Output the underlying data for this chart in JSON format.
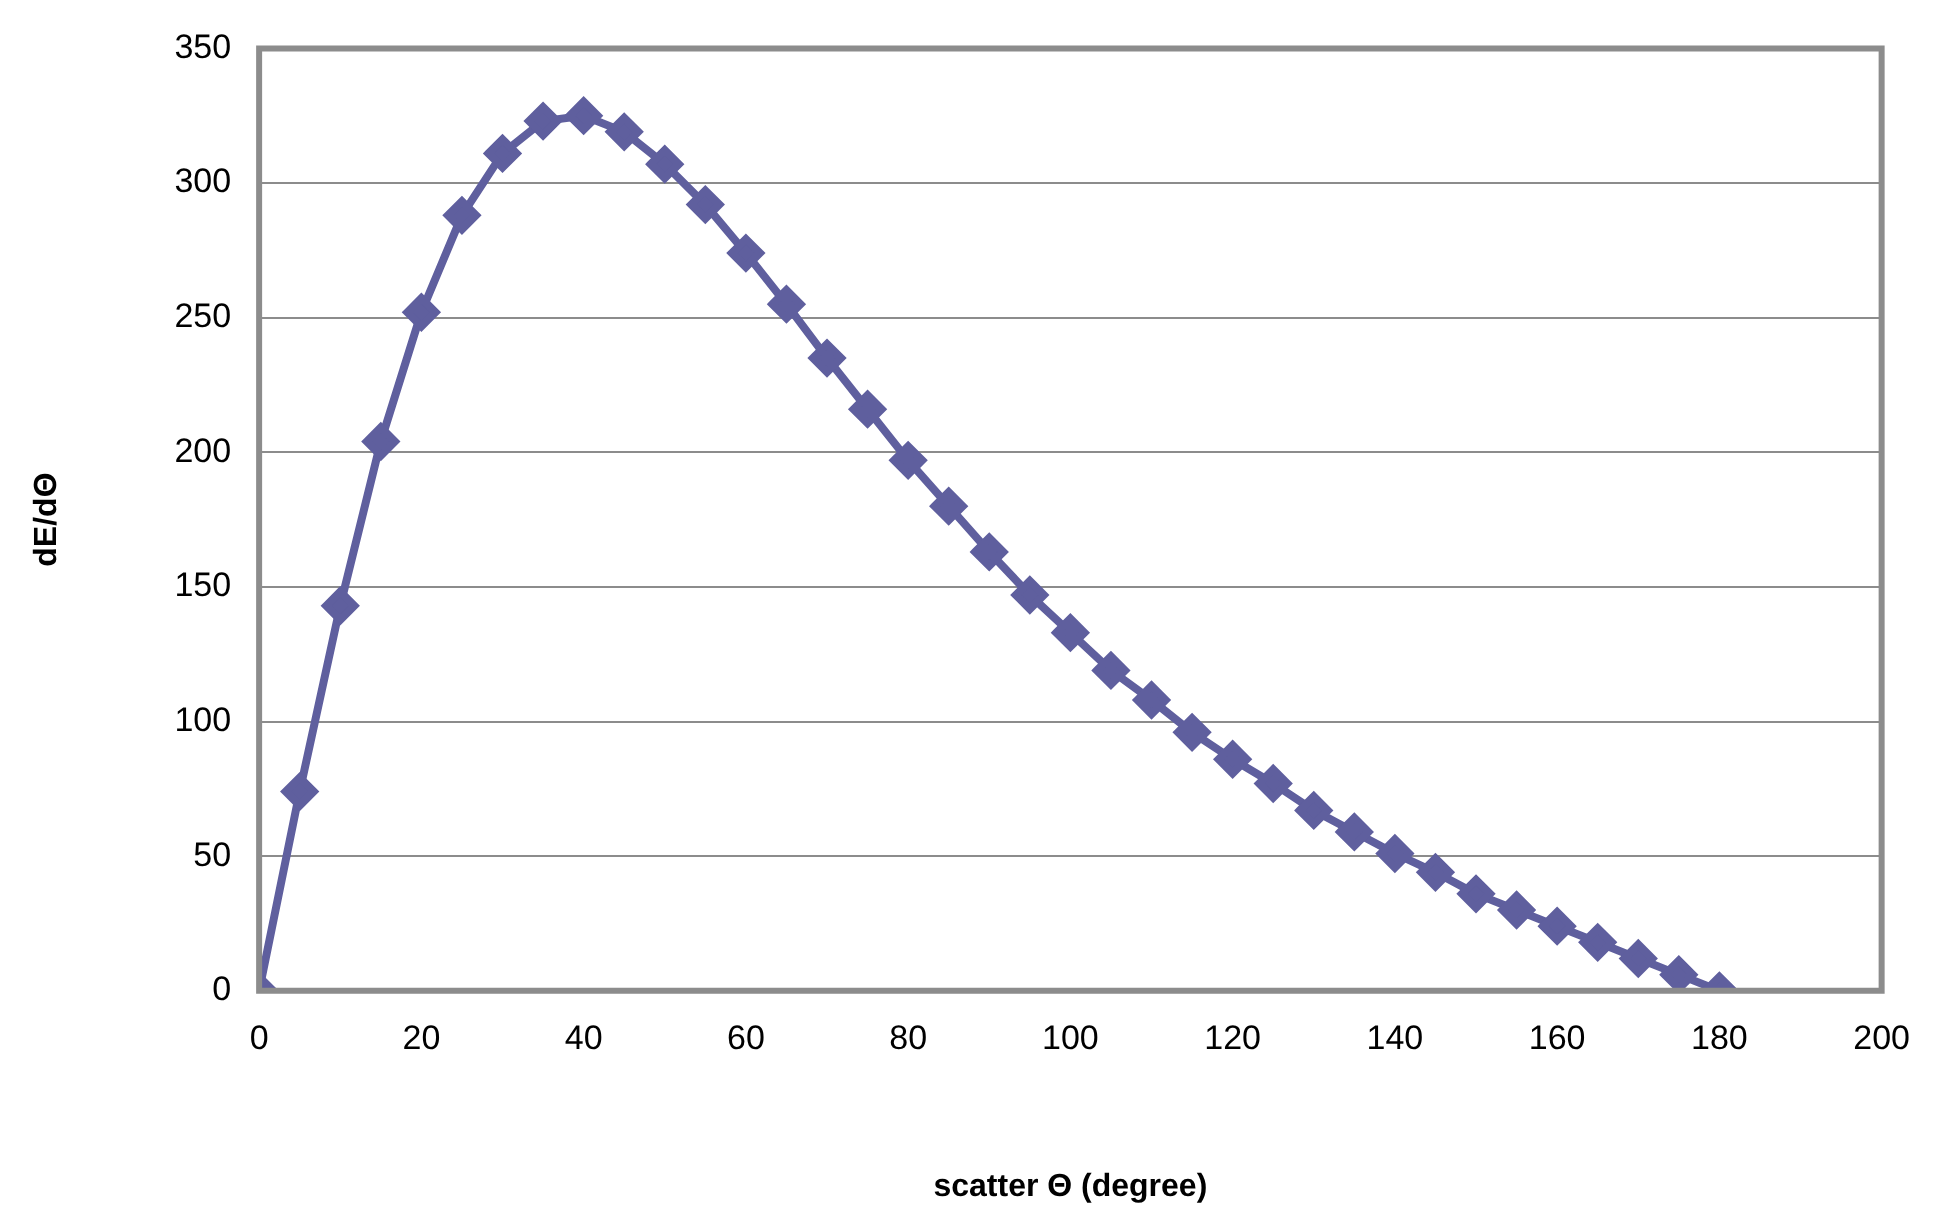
{
  "chart_data": {
    "type": "line",
    "xlabel": "scatter Θ (degree)",
    "ylabel": "dE/dΘ",
    "x": [
      0,
      5,
      10,
      15,
      20,
      25,
      30,
      35,
      40,
      45,
      50,
      55,
      60,
      65,
      70,
      75,
      80,
      85,
      90,
      95,
      100,
      105,
      110,
      115,
      120,
      125,
      130,
      135,
      140,
      145,
      150,
      155,
      160,
      165,
      170,
      175,
      180
    ],
    "series": [
      {
        "color": "#5f5f9e",
        "values": [
          0,
          74,
          143,
          204,
          252,
          288,
          311,
          323,
          325,
          319,
          307,
          292,
          274,
          255,
          235,
          216,
          197,
          180,
          163,
          147,
          133,
          119,
          108,
          96,
          86,
          77,
          67,
          59,
          51,
          44,
          36,
          30,
          24,
          18,
          12,
          6,
          0
        ]
      }
    ],
    "xlim": [
      0,
      200
    ],
    "xticks": [
      0,
      20,
      40,
      60,
      80,
      100,
      120,
      140,
      160,
      180,
      200
    ],
    "ylim": [
      0,
      350
    ],
    "yticks": [
      0,
      50,
      100,
      150,
      200,
      250,
      300,
      350
    ],
    "grid": "y",
    "marker": "diamond",
    "line_style": "solid",
    "legend": false
  }
}
